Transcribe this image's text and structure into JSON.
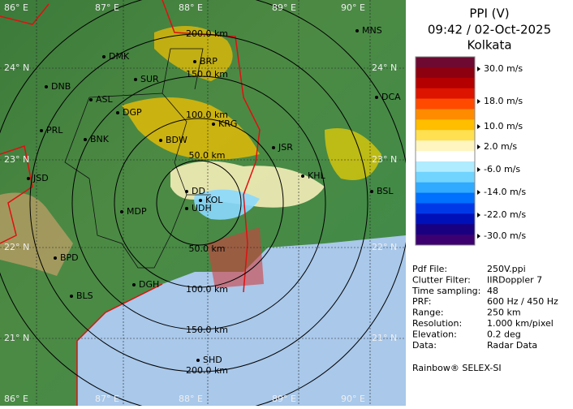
{
  "header": {
    "title": "PPI (V)",
    "time": "09:42 / 02-Oct-2025",
    "site": "Kolkata"
  },
  "map": {
    "lon_labels_top": [
      "86° E",
      "87° E",
      "88° E",
      "89° E",
      "90° E"
    ],
    "lon_labels_bottom": [
      "86° E",
      "87° E",
      "88° E",
      "89° E",
      "90° E"
    ],
    "lat_labels_left": [
      "24° N",
      "23° N",
      "22° N",
      "21° N"
    ],
    "lat_labels_right": [
      "24° N",
      "23° N",
      "22° N",
      "21° N"
    ],
    "range_labels_north": [
      "50.0 km",
      "100.0 km",
      "150.0 km",
      "200.0 km"
    ],
    "range_labels_south": [
      "50.0 km",
      "100.0 km",
      "150.0 km",
      "200.0 km"
    ],
    "cities": [
      "MNS",
      "DMK",
      "BRP",
      "DNB",
      "SUR",
      "ASL",
      "DGP",
      "KRG",
      "DCA",
      "PRL",
      "BNK",
      "BDW",
      "JSR",
      "KHL",
      "JSD",
      "BSL",
      "DD",
      "KOL",
      "MDP",
      "UDH",
      "BPD",
      "DGH",
      "BLS",
      "SHD"
    ]
  },
  "legend": {
    "colors": [
      "#6e0a32",
      "#8c0010",
      "#b40000",
      "#dc1400",
      "#ff4a00",
      "#ff8c00",
      "#ffbe00",
      "#ffe050",
      "#fff5c0",
      "#ffffff",
      "#b0ecff",
      "#70d4ff",
      "#30aaff",
      "#0070ff",
      "#0038e8",
      "#0010b8",
      "#180080",
      "#3c0070"
    ],
    "labels": [
      "30.0 m/s",
      "18.0 m/s",
      "10.0 m/s",
      "2.0 m/s",
      "-6.0 m/s",
      "-14.0 m/s",
      "-22.0 m/s",
      "-30.0 m/s"
    ]
  },
  "info": [
    {
      "key": "Pdf File:",
      "value": "250V.ppi"
    },
    {
      "key": "Clutter Filter:",
      "value": "IIRDoppler 7"
    },
    {
      "key": "Time sampling:",
      "value": "48"
    },
    {
      "key": "PRF:",
      "value": "600 Hz / 450 Hz"
    },
    {
      "key": "Range:",
      "value": "250 km"
    },
    {
      "key": "Resolution:",
      "value": "1.000 km/pixel"
    },
    {
      "key": "Elevation:",
      "value": "0.2 deg"
    },
    {
      "key": "Data:",
      "value": "Radar Data"
    }
  ],
  "footer": "Rainbow® SELEX-SI"
}
